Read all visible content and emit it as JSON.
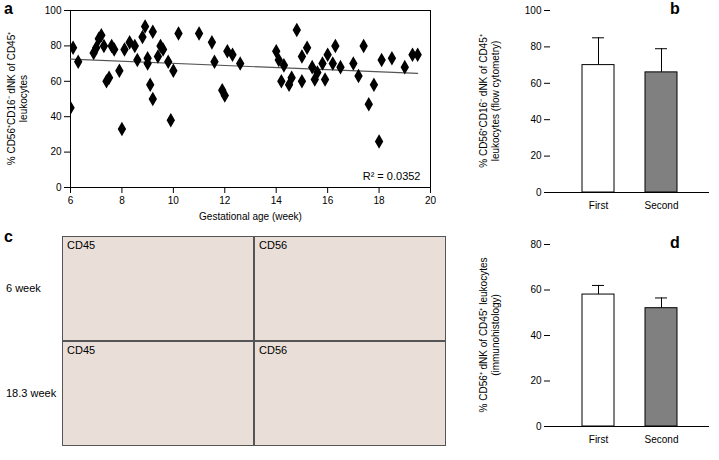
{
  "chart_data": [
    {
      "type": "scatter",
      "title": "a",
      "x": [
        6.0,
        6.1,
        6.3,
        6.9,
        7.0,
        7.1,
        7.2,
        7.3,
        7.4,
        7.5,
        7.6,
        7.7,
        7.9,
        8.0,
        8.1,
        8.3,
        8.5,
        8.6,
        8.8,
        8.9,
        9.0,
        9.0,
        9.1,
        9.2,
        9.2,
        9.4,
        9.5,
        9.6,
        9.8,
        9.9,
        10.0,
        10.2,
        11.0,
        11.5,
        11.6,
        11.9,
        12.0,
        12.1,
        12.3,
        12.6,
        14.0,
        14.1,
        14.2,
        14.3,
        14.5,
        14.6,
        14.8,
        15.0,
        15.0,
        15.2,
        15.4,
        15.5,
        15.6,
        15.8,
        15.9,
        16.0,
        16.2,
        16.3,
        16.5,
        17.0,
        17.2,
        17.4,
        17.6,
        17.8,
        18.0,
        18.1,
        18.5,
        19.0,
        19.3,
        19.5
      ],
      "y": [
        45,
        79,
        71,
        76,
        79,
        84,
        86,
        80,
        60,
        62,
        80,
        78,
        66,
        33,
        78,
        82,
        80,
        72,
        85,
        91,
        70,
        73,
        58,
        88,
        50,
        74,
        80,
        78,
        71,
        38,
        66,
        87,
        87,
        82,
        71,
        55,
        52,
        77,
        75,
        70,
        77,
        72,
        60,
        69,
        58,
        62,
        89,
        60,
        74,
        79,
        68,
        61,
        65,
        70,
        61,
        75,
        70,
        80,
        68,
        70,
        63,
        80,
        47,
        58,
        26,
        72,
        73,
        68,
        75,
        75
      ],
      "color": "#000000",
      "marker": "diamond",
      "fit": {
        "x": [
          6,
          19.5
        ],
        "y": [
          72.5,
          64.5
        ]
      },
      "annotation": "R² = 0.0352",
      "xlabel": "Gestational age (week)",
      "ylabel": "% CD56⁺CD16⁻ dNK of CD45⁺ leukocytes",
      "xlim": [
        6,
        20
      ],
      "xticks": [
        6,
        8,
        10,
        12,
        14,
        16,
        18,
        20
      ],
      "ylim": [
        0,
        100
      ],
      "yticks": [
        0,
        20,
        40,
        60,
        80,
        100
      ]
    },
    {
      "type": "bar",
      "title": "b",
      "categories": [
        "First",
        "Second"
      ],
      "values": [
        70,
        66
      ],
      "errors": [
        15,
        13
      ],
      "colors": [
        "#ffffff",
        "#808080"
      ],
      "ylabel": "% CD56⁺CD16⁻ dNK of CD45⁺ leukocytes (flow cytometry)",
      "ylim": [
        0,
        100
      ],
      "yticks": [
        0,
        20,
        40,
        60,
        80,
        100
      ]
    },
    {
      "type": "image",
      "title": "c",
      "columns": [
        "CD45",
        "CD56"
      ],
      "rows": [
        "6 week",
        "18.3 week"
      ]
    },
    {
      "type": "bar",
      "title": "d",
      "categories": [
        "First",
        "Second"
      ],
      "values": [
        58,
        52
      ],
      "errors": [
        4,
        4.5
      ],
      "colors": [
        "#ffffff",
        "#808080"
      ],
      "ylabel": "% CD56⁺ dNK of CD45⁺ leukocytes (immunohistology)",
      "ylim": [
        0,
        80
      ],
      "yticks": [
        0,
        20,
        40,
        60,
        80
      ]
    }
  ]
}
